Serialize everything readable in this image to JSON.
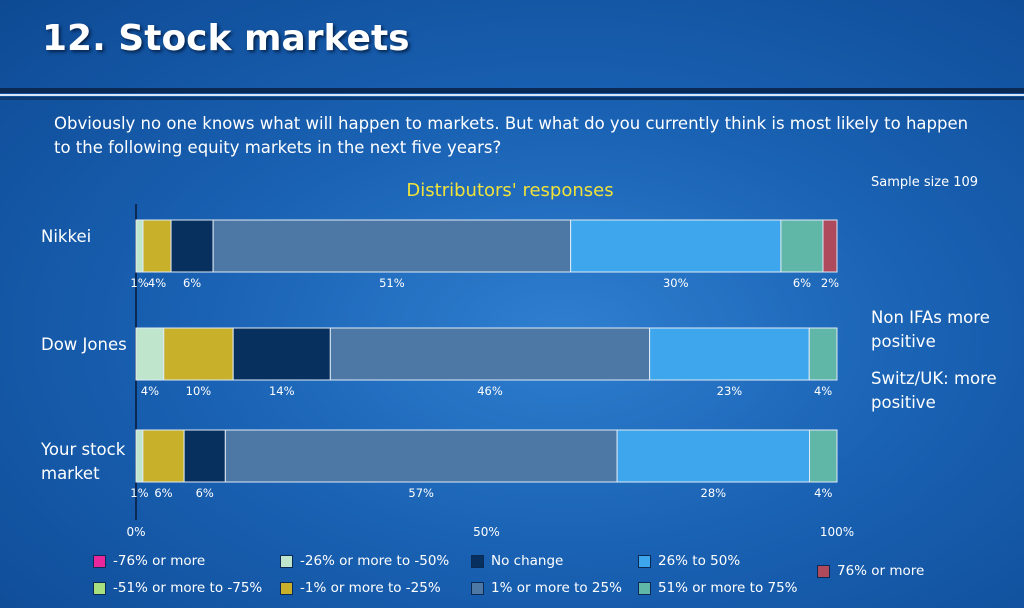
{
  "header": {
    "title": "12. Stock markets",
    "question": "Obviously no one knows what will happen to markets. But what do you currently think is most likely to happen to the following equity markets in the next five years?",
    "sample_size": "Sample size 109"
  },
  "notes": [
    "Non IFAs more positive",
    "Switz/UK: more positive"
  ],
  "colors": {
    "very_neg": "#e8279a",
    "neg_51_75": "#a8e080",
    "neg_26_50": "#bfe6cc",
    "neg_1_25": "#c9b02a",
    "no_change": "#07305e",
    "pos_1_25": "#4d78a6",
    "pos_26_50": "#3ea6ec",
    "pos_51_75": "#60b7a8",
    "pos_76": "#ae4a5c"
  },
  "chart_data": {
    "type": "bar",
    "orientation": "horizontal",
    "stacked": true,
    "title": "Distributors' responses",
    "xlim": [
      0,
      100
    ],
    "x_ticks": [
      "0%",
      "50%",
      "100%"
    ],
    "categories": [
      "Nikkei",
      "Dow Jones",
      "Your stock market"
    ],
    "series": [
      {
        "name": "-76% or more",
        "color": "#e8279a",
        "values": [
          0,
          0,
          0
        ],
        "labels": [
          "",
          "",
          ""
        ]
      },
      {
        "name": "-51% or more to -75%",
        "color": "#a8e080",
        "values": [
          0,
          0,
          0
        ],
        "labels": [
          "",
          "",
          ""
        ]
      },
      {
        "name": "-26% or more to -50%",
        "color": "#bfe6cc",
        "values": [
          1,
          4,
          1
        ],
        "labels": [
          "1%",
          "4%",
          "1%"
        ]
      },
      {
        "name": "-1% or more to -25%",
        "color": "#c9b02a",
        "values": [
          4,
          10,
          6
        ],
        "labels": [
          "4%",
          "10%",
          "6%"
        ]
      },
      {
        "name": "No change",
        "color": "#07305e",
        "values": [
          6,
          14,
          6
        ],
        "labels": [
          "6%",
          "14%",
          "6%"
        ]
      },
      {
        "name": "1% or more to 25%",
        "color": "#4d78a6",
        "values": [
          51,
          46,
          57
        ],
        "labels": [
          "51%",
          "46%",
          "57%"
        ]
      },
      {
        "name": "26% to 50%",
        "color": "#3ea6ec",
        "values": [
          30,
          23,
          28
        ],
        "labels": [
          "30%",
          "23%",
          "28%"
        ]
      },
      {
        "name": "51% or more to 75%",
        "color": "#60b7a8",
        "values": [
          6,
          4,
          4
        ],
        "labels": [
          "6%",
          "4%",
          "4%"
        ]
      },
      {
        "name": "76% or more",
        "color": "#ae4a5c",
        "values": [
          2,
          0,
          0
        ],
        "labels": [
          "2%",
          "",
          ""
        ]
      }
    ],
    "legend_placement": "bottom"
  }
}
